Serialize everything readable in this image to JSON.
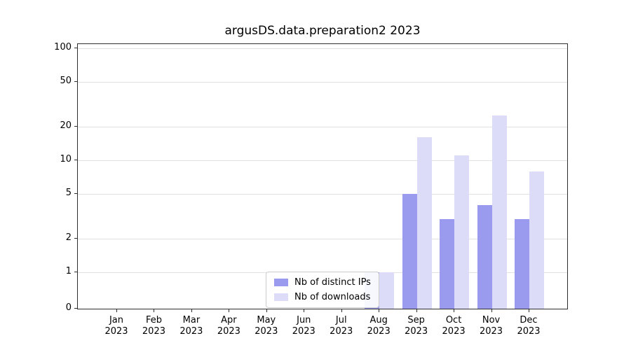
{
  "title": "argusDS.data.preparation2 2023",
  "legend": {
    "items": [
      {
        "label": "Nb of distinct IPs",
        "color": "#9a9aee"
      },
      {
        "label": "Nb of downloads",
        "color": "#dcdcf8"
      }
    ]
  },
  "chart_data": {
    "type": "bar",
    "title": "argusDS.data.preparation2 2023",
    "categories": [
      "Jan 2023",
      "Feb 2023",
      "Mar 2023",
      "Apr 2023",
      "May 2023",
      "Jun 2023",
      "Jul 2023",
      "Aug 2023",
      "Sep 2023",
      "Oct 2023",
      "Nov 2023",
      "Dec 2023"
    ],
    "series": [
      {
        "name": "Nb of distinct IPs",
        "color": "#9a9aee",
        "values": [
          0,
          0,
          0,
          0,
          0,
          0,
          0,
          1,
          5,
          3,
          4,
          3
        ]
      },
      {
        "name": "Nb of downloads",
        "color": "#dcdcf8",
        "values": [
          0,
          0,
          0,
          0,
          0,
          0,
          0,
          1,
          16,
          11,
          25,
          8
        ]
      }
    ],
    "yscale": "symlog",
    "y_ticks": [
      0,
      1,
      2,
      5,
      10,
      20,
      50,
      100
    ],
    "ylim": [
      0,
      112
    ],
    "grid": true,
    "legend_position": "lower center",
    "xlabel": "",
    "ylabel": ""
  }
}
